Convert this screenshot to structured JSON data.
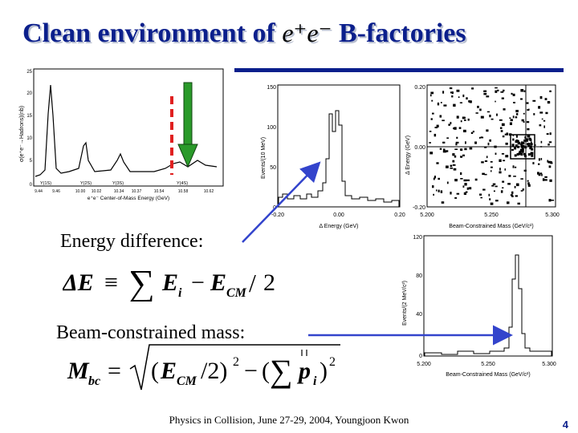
{
  "slide": {
    "title": "Clean environment of",
    "title_ee": "e⁺e⁻",
    "title_suffix": "B-factories",
    "label_energy": "Energy difference:",
    "label_mass": "Beam-constrained mass:",
    "footer": "Physics in Collision,   June 27-29, 2004,    Youngjoon Kwon",
    "page_number": "4",
    "colors": {
      "title": "#0b1f8c",
      "arrow_blue": "#3344cc",
      "dashed_red": "#e02020",
      "green_arrow": "#2a9a2a"
    }
  },
  "plots": {
    "upsilon": {
      "ylabel": "σ(e⁺e⁻→Hadrons)(nb)",
      "xlabel": "e⁺e⁻ Center-of-Mass Energy (GeV)",
      "y_ticks": [
        "25",
        "20",
        "15",
        "10",
        "5",
        "0"
      ],
      "x_ticks": [
        "9.44",
        "9.46",
        "10.00",
        "10.02",
        "10.34",
        "10.37",
        "10.54",
        "10.58",
        "10.62"
      ],
      "peaks": [
        "Υ(1S)",
        "Υ(2S)",
        "Υ(3S)",
        "Υ(4S)"
      ]
    },
    "deltaE": {
      "ylabel": "Events/(10 MeV)",
      "xlabel": "Δ Energy (GeV)",
      "y_ticks": [
        "150",
        "100",
        "50",
        "0"
      ],
      "x_ticks": [
        "-0.20",
        "0.00",
        "0.20"
      ]
    },
    "scatter": {
      "ylabel": "Δ Energy (GeV)",
      "xlabel": "Beam-Constrained Mass (GeV/c²)",
      "y_ticks": [
        "0.20",
        "0.00",
        "-0.20"
      ],
      "x_ticks": [
        "5.200",
        "5.250",
        "5.300"
      ]
    },
    "mbc": {
      "ylabel": "Events/(2 MeV/c²)",
      "xlabel": "Beam-Constrained Mass (GeV/c²)",
      "y_ticks": [
        "120",
        "80",
        "40",
        "0"
      ],
      "x_ticks": [
        "5.200",
        "5.250",
        "5.300"
      ]
    }
  }
}
